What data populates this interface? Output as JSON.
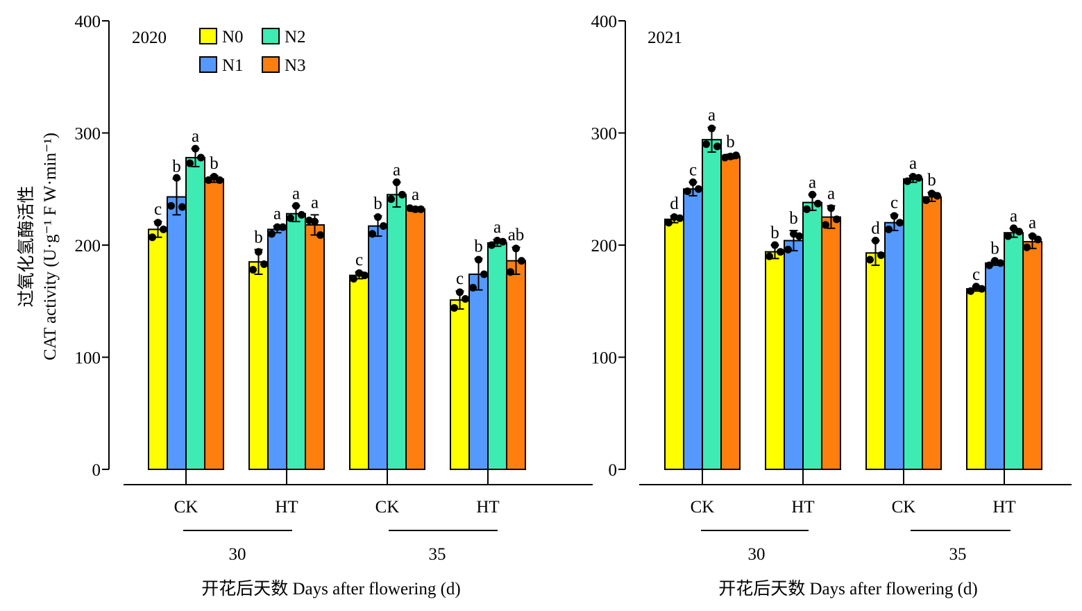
{
  "figure": {
    "ylabel_cn": "过氧化氢酶活性",
    "ylabel_en": "CAT activity (U·g⁻¹ F W·min⁻¹)",
    "xlabel": "开花后天数 Days after flowering (d)"
  },
  "legend": {
    "entries": [
      {
        "name": "N0",
        "color": "#FFFF00"
      },
      {
        "name": "N1",
        "color": "#5599FF"
      },
      {
        "name": "N2",
        "color": "#3DEBB3"
      },
      {
        "name": "N3",
        "color": "#FF7F0E"
      }
    ]
  },
  "chart_data": [
    {
      "type": "bar",
      "title": "2020",
      "ylim": [
        0,
        400
      ],
      "yticks": [
        0,
        100,
        200,
        300,
        400
      ],
      "categories": [
        "CK",
        "HT",
        "CK",
        "HT"
      ],
      "day_groups": [
        {
          "label": "30",
          "categories": [
            0,
            1
          ]
        },
        {
          "label": "35",
          "categories": [
            2,
            3
          ]
        }
      ],
      "series": [
        {
          "name": "N0",
          "values": [
            214,
            185,
            173,
            151
          ],
          "errors": [
            7,
            11,
            3,
            8
          ],
          "letters": [
            "c",
            "b",
            "c",
            "c"
          ],
          "points": [
            [
              220,
              207,
              214
            ],
            [
              194,
              178,
              183
            ],
            [
              175,
              170,
              173
            ],
            [
              158,
              144,
              152
            ]
          ]
        },
        {
          "name": "N1",
          "values": [
            243,
            214,
            217,
            174
          ],
          "errors": [
            16,
            3,
            9,
            14
          ],
          "letters": [
            "b",
            "a",
            "b",
            "b"
          ],
          "points": [
            [
              260,
              235,
              234
            ],
            [
              216,
              210,
              216
            ],
            [
              225,
              210,
              217
            ],
            [
              187,
              162,
              174
            ]
          ]
        },
        {
          "name": "N2",
          "values": [
            278,
            228,
            245,
            202
          ],
          "errors": [
            8,
            7,
            11,
            3
          ],
          "letters": [
            "a",
            "a",
            "a",
            "a"
          ],
          "points": [
            [
              286,
              273,
              278
            ],
            [
              235,
              224,
              227
            ],
            [
              256,
              241,
              245
            ],
            [
              204,
              200,
              203
            ]
          ]
        },
        {
          "name": "N3",
          "values": [
            259,
            218,
            232,
            186
          ],
          "errors": [
            3,
            9,
            2,
            12
          ],
          "letters": [
            "b",
            "a",
            "a",
            "ab"
          ],
          "points": [
            [
              261,
              258,
              258
            ],
            [
              221,
              222,
              209
            ],
            [
              232,
              233,
              232
            ],
            [
              197,
              176,
              186
            ]
          ]
        }
      ]
    },
    {
      "type": "bar",
      "title": "2021",
      "ylim": [
        0,
        400
      ],
      "yticks": [
        0,
        100,
        200,
        300,
        400
      ],
      "categories": [
        "CK",
        "HT",
        "CK",
        "HT"
      ],
      "day_groups": [
        {
          "label": "30",
          "categories": [
            0,
            1
          ]
        },
        {
          "label": "35",
          "categories": [
            2,
            3
          ]
        }
      ],
      "series": [
        {
          "name": "N0",
          "values": [
            223,
            194,
            193,
            161
          ],
          "errors": [
            3,
            6,
            11,
            2
          ],
          "letters": [
            "d",
            "b",
            "d",
            "c"
          ],
          "points": [
            [
              225,
              220,
              224
            ],
            [
              200,
              190,
              194
            ],
            [
              204,
              187,
              191
            ],
            [
              163,
              159,
              161
            ]
          ]
        },
        {
          "name": "N1",
          "values": [
            250,
            204,
            220,
            184
          ],
          "errors": [
            6,
            9,
            7,
            2
          ],
          "letters": [
            "c",
            "b",
            "c",
            "b"
          ],
          "points": [
            [
              256,
              248,
              250
            ],
            [
              210,
              196,
              208
            ],
            [
              226,
              214,
              220
            ],
            [
              186,
              182,
              184
            ]
          ]
        },
        {
          "name": "N2",
          "values": [
            294,
            238,
            259,
            211
          ],
          "errors": [
            11,
            7,
            3,
            4
          ],
          "letters": [
            "a",
            "a",
            "a",
            "a"
          ],
          "points": [
            [
              304,
              290,
              288
            ],
            [
              245,
              232,
              237
            ],
            [
              261,
              257,
              260
            ],
            [
              215,
              208,
              212
            ]
          ]
        },
        {
          "name": "N3",
          "values": [
            279,
            225,
            243,
            203
          ],
          "errors": [
            2,
            10,
            4,
            6
          ],
          "letters": [
            "b",
            "a",
            "b",
            "a"
          ],
          "points": [
            [
              279,
              278,
              280
            ],
            [
              233,
              218,
              223
            ],
            [
              246,
              240,
              244
            ],
            [
              208,
              198,
              205
            ]
          ]
        }
      ]
    }
  ]
}
